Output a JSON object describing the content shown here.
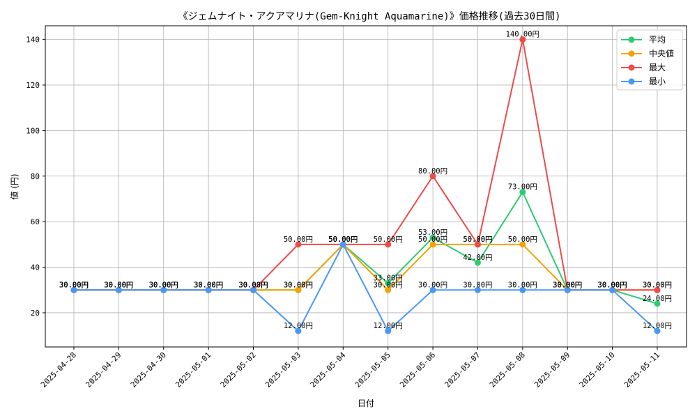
{
  "chart_data": {
    "type": "line",
    "title": "《ジェムナイト・アクアマリナ(Gem-Knight Aquamarine)》価格推移(過去30日間)",
    "xlabel": "日付",
    "ylabel": "値 (円)",
    "ylim": [
      5,
      146
    ],
    "yticks": [
      20,
      40,
      60,
      80,
      100,
      120,
      140
    ],
    "grid": true,
    "legend_position": "top-right",
    "label_suffix": "円",
    "categories": [
      "2025-04-28",
      "2025-04-29",
      "2025-04-30",
      "2025-05-01",
      "2025-05-02",
      "2025-05-03",
      "2025-05-04",
      "2025-05-05",
      "2025-05-06",
      "2025-05-07",
      "2025-05-08",
      "2025-05-09",
      "2025-05-10",
      "2025-05-11"
    ],
    "series": [
      {
        "name": "平均",
        "color": "#2ecc71",
        "values": [
          30,
          30,
          30,
          30,
          30,
          30,
          50,
          33,
          53,
          42,
          73,
          30,
          30,
          24
        ]
      },
      {
        "name": "中央値",
        "color": "#f5a300",
        "values": [
          30,
          30,
          30,
          30,
          30,
          30,
          50,
          30,
          50,
          50,
          50,
          30,
          30,
          30
        ]
      },
      {
        "name": "最大",
        "color": "#f04a4a",
        "values": [
          30,
          30,
          30,
          30,
          30,
          50,
          50,
          50,
          80,
          50,
          140,
          30,
          30,
          30
        ]
      },
      {
        "name": "最小",
        "color": "#4a98f5",
        "values": [
          30,
          30,
          30,
          30,
          30,
          12,
          50,
          12,
          30,
          30,
          30,
          30,
          30,
          12
        ]
      }
    ]
  }
}
